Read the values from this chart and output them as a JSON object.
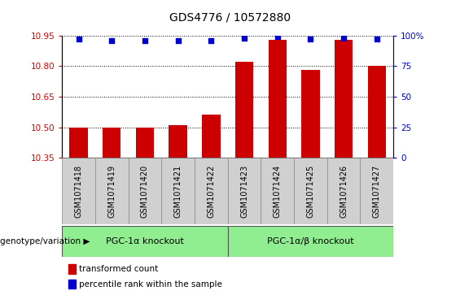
{
  "title": "GDS4776 / 10572880",
  "samples": [
    "GSM1071418",
    "GSM1071419",
    "GSM1071420",
    "GSM1071421",
    "GSM1071422",
    "GSM1071423",
    "GSM1071424",
    "GSM1071425",
    "GSM1071426",
    "GSM1071427"
  ],
  "bar_values": [
    10.5,
    10.5,
    10.5,
    10.51,
    10.56,
    10.82,
    10.93,
    10.78,
    10.93,
    10.8
  ],
  "dot_values": [
    97,
    96,
    96,
    96,
    96,
    98,
    99,
    97,
    98,
    97
  ],
  "y_min": 10.35,
  "y_max": 10.95,
  "y_ticks": [
    10.35,
    10.5,
    10.65,
    10.8,
    10.95
  ],
  "y2_ticks": [
    0,
    25,
    50,
    75,
    100
  ],
  "bar_color": "#cc0000",
  "dot_color": "#0000cc",
  "groups": [
    {
      "label": "PGC-1α knockout",
      "start": 0,
      "end": 5,
      "color": "#90ee90"
    },
    {
      "label": "PGC-1α/β knockout",
      "start": 5,
      "end": 10,
      "color": "#90ee90"
    }
  ],
  "group_label_prefix": "genotype/variation",
  "legend_bar_label": "transformed count",
  "legend_dot_label": "percentile rank within the sample",
  "title_fontsize": 10,
  "tick_fontsize": 7.5,
  "sample_fontsize": 7,
  "axis_label_color_left": "#cc0000",
  "axis_label_color_right": "#0000cc",
  "sample_box_color": "#d0d0d0",
  "sample_box_edge": "#888888"
}
